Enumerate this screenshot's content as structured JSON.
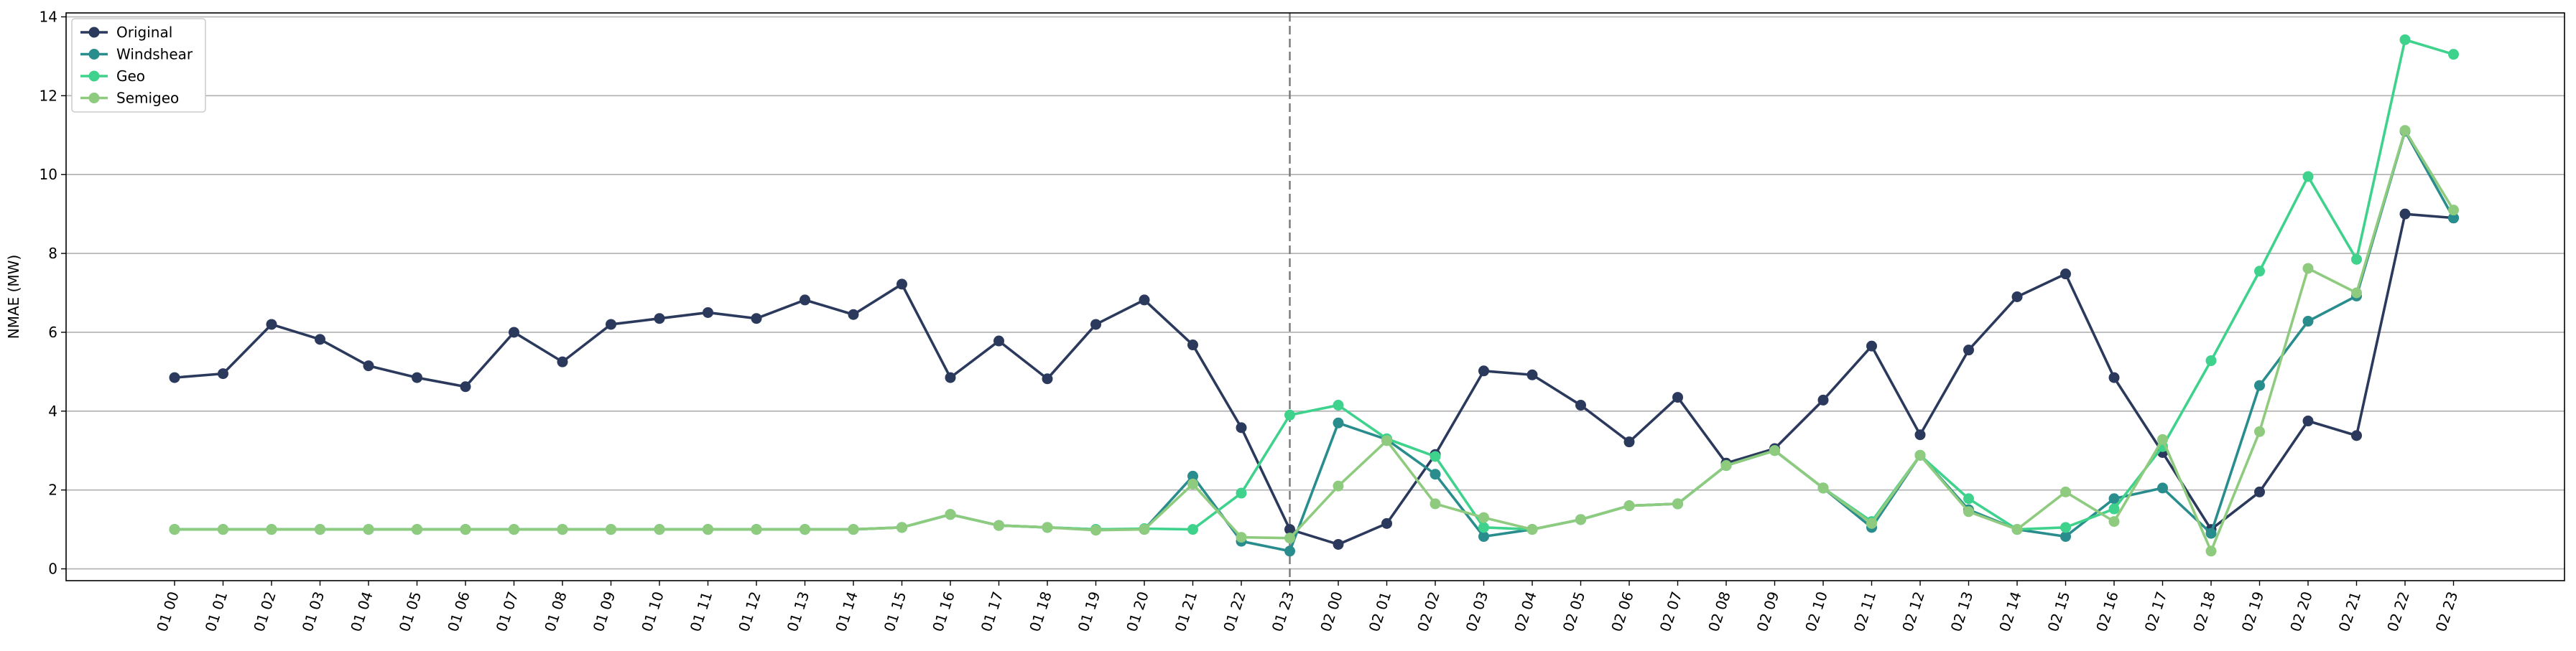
{
  "chart_data": {
    "type": "line",
    "title": "",
    "xlabel": "",
    "ylabel": "NMAE (MW)",
    "ylim": [
      -0.3,
      14.1
    ],
    "yticks": [
      0,
      2,
      4,
      6,
      8,
      10,
      12,
      14
    ],
    "grid": "horizontal",
    "legend": "top-left",
    "categories": [
      "01 00",
      "01 01",
      "01 02",
      "01 03",
      "01 04",
      "01 05",
      "01 06",
      "01 07",
      "01 08",
      "01 09",
      "01 10",
      "01 11",
      "01 12",
      "01 13",
      "01 14",
      "01 15",
      "01 16",
      "01 17",
      "01 18",
      "01 19",
      "01 20",
      "01 21",
      "01 22",
      "01 23",
      "02 00",
      "02 01",
      "02 02",
      "02 03",
      "02 04",
      "02 05",
      "02 06",
      "02 07",
      "02 08",
      "02 09",
      "02 10",
      "02 11",
      "02 12",
      "02 13",
      "02 14",
      "02 15",
      "02 16",
      "02 17",
      "02 18",
      "02 19",
      "02 20",
      "02 21",
      "02 22",
      "02 23"
    ],
    "vline_category": "01 23",
    "series": [
      {
        "name": "Original",
        "color": "#2b3a5c",
        "values": [
          4.85,
          4.95,
          6.2,
          5.82,
          5.15,
          4.85,
          4.62,
          6.0,
          5.25,
          6.2,
          6.35,
          6.5,
          6.35,
          6.82,
          6.45,
          7.22,
          4.85,
          5.78,
          4.82,
          6.2,
          6.82,
          5.68,
          3.58,
          1.0,
          0.62,
          1.15,
          2.9,
          5.02,
          4.92,
          4.15,
          3.22,
          4.35,
          2.68,
          3.05,
          4.28,
          5.65,
          3.4,
          5.55,
          6.9,
          7.48,
          4.85,
          2.95,
          1.0,
          1.95,
          3.75,
          3.38,
          9.0,
          8.9
        ]
      },
      {
        "name": "Windshear",
        "color": "#2a8d8d",
        "values": [
          1.0,
          1.0,
          1.0,
          1.0,
          1.0,
          1.0,
          1.0,
          1.0,
          1.0,
          1.0,
          1.0,
          1.0,
          1.0,
          1.0,
          1.0,
          1.05,
          1.38,
          1.1,
          1.05,
          1.0,
          1.0,
          2.35,
          0.7,
          0.45,
          3.7,
          3.28,
          2.4,
          0.82,
          1.0,
          1.25,
          1.6,
          1.65,
          2.62,
          3.0,
          2.05,
          1.05,
          2.88,
          1.5,
          1.0,
          0.82,
          1.78,
          2.05,
          0.9,
          4.65,
          6.28,
          6.92,
          11.1,
          8.9
        ]
      },
      {
        "name": "Geo",
        "color": "#3fd28c",
        "values": [
          1.0,
          1.0,
          1.0,
          1.0,
          1.0,
          1.0,
          1.0,
          1.0,
          1.0,
          1.0,
          1.0,
          1.0,
          1.0,
          1.0,
          1.0,
          1.05,
          1.38,
          1.1,
          1.05,
          1.0,
          1.02,
          1.0,
          1.92,
          3.9,
          4.15,
          3.3,
          2.85,
          1.05,
          1.0,
          1.25,
          1.6,
          1.65,
          2.62,
          3.0,
          2.05,
          1.2,
          2.88,
          1.78,
          1.0,
          1.05,
          1.52,
          3.1,
          5.28,
          7.55,
          9.95,
          7.85,
          13.42,
          13.05
        ]
      },
      {
        "name": "Semigeo",
        "color": "#8fcb7f",
        "values": [
          1.0,
          1.0,
          1.0,
          1.0,
          1.0,
          1.0,
          1.0,
          1.0,
          1.0,
          1.0,
          1.0,
          1.0,
          1.0,
          1.0,
          1.0,
          1.05,
          1.38,
          1.1,
          1.05,
          0.98,
          1.0,
          2.15,
          0.8,
          0.78,
          2.1,
          3.25,
          1.65,
          1.3,
          1.0,
          1.25,
          1.6,
          1.65,
          2.62,
          3.0,
          2.05,
          1.15,
          2.88,
          1.45,
          1.0,
          1.95,
          1.2,
          3.28,
          0.45,
          3.48,
          7.62,
          7.0,
          11.12,
          9.1
        ]
      }
    ]
  }
}
